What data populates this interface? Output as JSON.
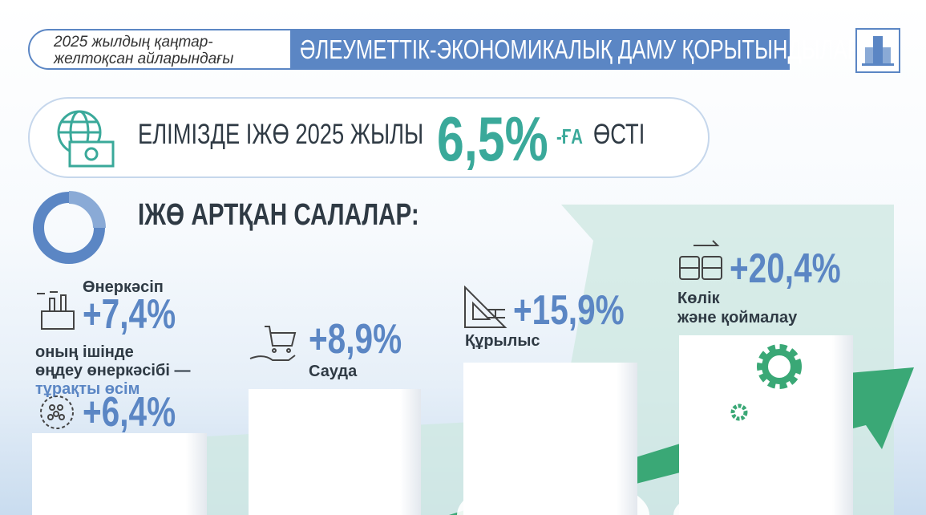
{
  "header": {
    "period": "2025 жылдың қаңтар-\nжелтоқсан айларындағы",
    "title": "ӘЛЕУМЕТТІК-ЭКОНОМИКАЛЫҚ ДАМУ ҚОРЫТЫНДЫЛАРЫ"
  },
  "gdp": {
    "text": "ЕЛІМІЗДЕ  ІЖӨ 2025 ЖЫЛЫ",
    "value": "6,5%",
    "suffix": "-ҒА",
    "verb": "ӨСТІ",
    "icon": "globe-money-icon"
  },
  "section_title": "ІЖӨ АРТҚАН САЛАЛАР:",
  "sectors": [
    {
      "label": "Өнеркәсіп",
      "value": "+7,4%",
      "icon": "factory-icon"
    },
    {
      "label": "Сауда",
      "value": "+8,9%",
      "icon": "cart-hand-icon"
    },
    {
      "label": "Құрылыс",
      "value": "+15,9%",
      "icon": "construction-icon"
    },
    {
      "label": "Көлік\nжәне қоймалау",
      "value": "+20,4%",
      "icon": "transport-icon"
    }
  ],
  "manufacturing": {
    "line1": "оның ішінде",
    "line2": "өңдеу өнеркәсібі —",
    "line3": "тұрақты өсім",
    "value": "+6,4%",
    "icon": "cycle-icon"
  },
  "colors": {
    "blue": "#5b86c4",
    "teal": "#3aa99a",
    "green": "#3aa876"
  }
}
